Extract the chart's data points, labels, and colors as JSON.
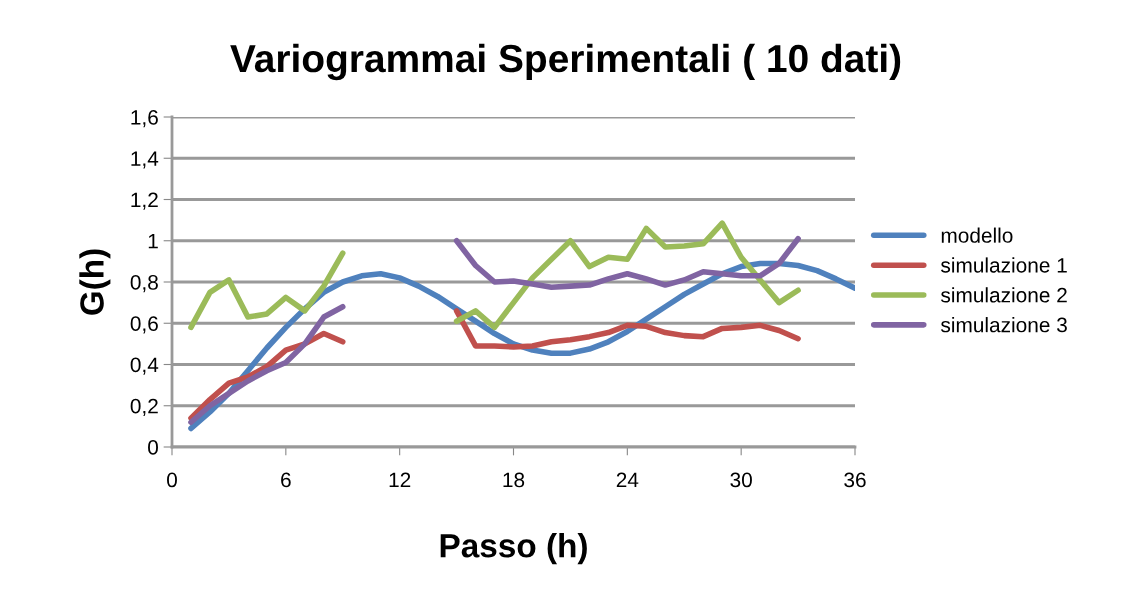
{
  "chart_data": {
    "type": "line",
    "title": "Variogrammai Sperimentali ( 10 dati)",
    "xlabel": "Passo (h)",
    "ylabel": "G(h)",
    "x": [
      1,
      2,
      3,
      4,
      5,
      6,
      7,
      8,
      9,
      10,
      11,
      12,
      13,
      14,
      15,
      16,
      17,
      18,
      19,
      20,
      21,
      22,
      23,
      24,
      25,
      26,
      27,
      28,
      29,
      30,
      31,
      32,
      33,
      34,
      35,
      36
    ],
    "series": [
      {
        "name": "modello",
        "color": "#4f81bd",
        "values": [
          0.09,
          0.17,
          0.26,
          0.37,
          0.48,
          0.58,
          0.67,
          0.75,
          0.8,
          0.83,
          0.84,
          0.82,
          0.78,
          0.73,
          0.67,
          0.61,
          0.55,
          0.5,
          0.47,
          0.455,
          0.455,
          0.475,
          0.51,
          0.56,
          0.62,
          0.68,
          0.74,
          0.79,
          0.84,
          0.875,
          0.89,
          0.89,
          0.88,
          0.855,
          0.815,
          0.77
        ]
      },
      {
        "name": "simulazione 1",
        "color": "#c0504d",
        "values": [
          0.14,
          0.23,
          0.31,
          0.34,
          0.39,
          0.47,
          0.5,
          0.55,
          0.51,
          null,
          null,
          null,
          null,
          null,
          0.66,
          0.49,
          0.49,
          0.485,
          0.49,
          0.51,
          0.52,
          0.535,
          0.555,
          0.59,
          0.585,
          0.555,
          0.54,
          0.535,
          0.575,
          0.58,
          0.59,
          0.565,
          0.525,
          null,
          null,
          null
        ]
      },
      {
        "name": "simulazione 2",
        "color": "#9bbb59",
        "values": [
          0.58,
          0.75,
          0.81,
          0.63,
          0.645,
          0.725,
          0.66,
          0.78,
          0.94,
          null,
          null,
          null,
          null,
          null,
          0.61,
          0.66,
          0.58,
          0.7,
          0.82,
          0.91,
          1.0,
          0.875,
          0.92,
          0.91,
          1.06,
          0.97,
          0.975,
          0.985,
          1.085,
          0.92,
          0.81,
          0.7,
          0.76,
          null,
          null,
          null
        ]
      },
      {
        "name": "simulazione 3",
        "color": "#8064a2",
        "values": [
          0.12,
          0.2,
          0.26,
          0.32,
          0.37,
          0.41,
          0.5,
          0.63,
          0.68,
          null,
          null,
          null,
          null,
          null,
          1.0,
          0.88,
          0.8,
          0.805,
          0.79,
          0.775,
          0.78,
          0.785,
          0.815,
          0.84,
          0.815,
          0.785,
          0.81,
          0.85,
          0.84,
          0.83,
          0.83,
          0.89,
          1.01,
          null,
          null,
          null
        ]
      }
    ],
    "xlim": [
      0,
      36
    ],
    "xticks": [
      0,
      6,
      12,
      18,
      24,
      30,
      36
    ],
    "ylim": [
      0,
      1.6
    ],
    "yticks": [
      0,
      {
        "value": 0.2,
        "label": "0,2"
      },
      {
        "value": 0.4,
        "label": "0,4"
      },
      {
        "value": 0.6,
        "label": "0,6"
      },
      {
        "value": 0.8,
        "label": "0,8"
      },
      1,
      {
        "value": 1.2,
        "label": "1,2"
      },
      {
        "value": 1.4,
        "label": "1,4"
      },
      {
        "value": 1.6,
        "label": "1,6"
      }
    ],
    "grid": "y",
    "legend": "right",
    "marker": "none",
    "line_style": "solid"
  }
}
